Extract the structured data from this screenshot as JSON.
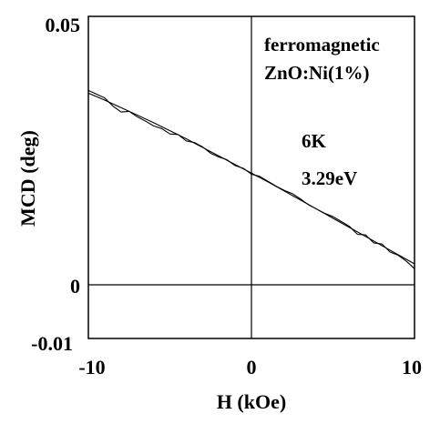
{
  "chart_data": {
    "type": "line",
    "xlabel": "H  (kOe)",
    "ylabel": "MCD (deg)",
    "xlim": [
      -10,
      10
    ],
    "ylim": [
      -0.01,
      0.05
    ],
    "x_ticks": [
      "-10",
      "0",
      "10"
    ],
    "y_ticks": [
      "0.05",
      "0",
      "-0.01"
    ],
    "grid": false,
    "reference_lines": {
      "x": 0,
      "y": 0
    },
    "annotations": {
      "line1": "ferromagnetic",
      "line2": "ZnO:Ni(1%)",
      "line3": "6K",
      "line4": "3.29eV"
    },
    "series": [
      {
        "x": [
          -10,
          -9,
          -8,
          -7,
          -6,
          -5,
          -4,
          -3,
          -2,
          -1,
          0,
          1,
          2,
          3,
          4,
          5,
          6,
          7,
          8,
          9,
          10
        ],
        "y": [
          0.0357,
          0.0344,
          0.033,
          0.0316,
          0.0302,
          0.0287,
          0.0272,
          0.0256,
          0.024,
          0.0224,
          0.0208,
          0.0192,
          0.0175,
          0.0158,
          0.0141,
          0.0124,
          0.0107,
          0.009,
          0.0073,
          0.0056,
          0.0039
        ]
      },
      {
        "x": [
          -10,
          -9.5,
          -9,
          -8.5,
          -8,
          -7.5,
          -7,
          -6.5,
          -6,
          -5.5,
          -5,
          -4.5,
          -4,
          -3.5,
          -3,
          -2.5,
          -2,
          -1.5,
          -1,
          -0.5,
          0,
          0.5,
          1,
          1.5,
          2,
          2.5,
          3,
          3.5,
          4,
          4.5,
          5,
          5.5,
          6,
          6.5,
          7,
          7.5,
          8,
          8.5,
          9,
          9.5,
          10
        ],
        "y": [
          0.0362,
          0.0355,
          0.0348,
          0.0333,
          0.0322,
          0.0323,
          0.0313,
          0.0305,
          0.0296,
          0.0291,
          0.0281,
          0.028,
          0.0268,
          0.0265,
          0.0257,
          0.0245,
          0.0238,
          0.0233,
          0.0222,
          0.0217,
          0.0206,
          0.0202,
          0.0193,
          0.0184,
          0.0176,
          0.017,
          0.016,
          0.0149,
          0.0141,
          0.0133,
          0.0127,
          0.0118,
          0.0109,
          0.0094,
          0.0093,
          0.0078,
          0.0076,
          0.0061,
          0.0055,
          0.0044,
          0.003
        ]
      }
    ]
  }
}
